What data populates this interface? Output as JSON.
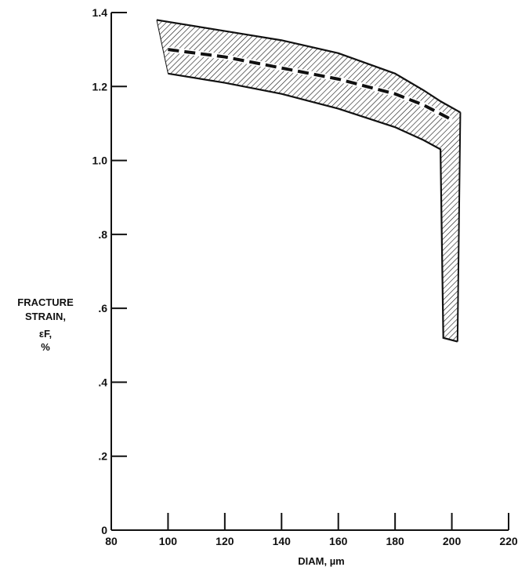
{
  "chart_data": {
    "type": "area",
    "title": "",
    "xlabel": "DIAM, µm",
    "ylabel_lines": [
      "FRACTURE",
      "STRAIN,",
      "εF,",
      "%"
    ],
    "xlim": [
      80,
      220
    ],
    "ylim": [
      0,
      1.4
    ],
    "x_ticks": [
      80,
      100,
      120,
      140,
      160,
      180,
      200,
      220
    ],
    "x_tick_labels": [
      "80",
      "100",
      "120",
      "140",
      "160",
      "180",
      "200",
      "220"
    ],
    "y_ticks": [
      0,
      0.2,
      0.4,
      0.6,
      0.8,
      1.0,
      1.2,
      1.4
    ],
    "y_tick_labels": [
      "0",
      ".2",
      ".4",
      ".6",
      ".8",
      "1.0",
      "1.2",
      "1.4"
    ],
    "grid": false,
    "series": [
      {
        "style": "hatched-band",
        "upper": {
          "x": [
            96,
            100,
            120,
            140,
            160,
            180,
            190,
            196,
            203
          ],
          "y": [
            1.38,
            1.375,
            1.35,
            1.325,
            1.29,
            1.235,
            1.19,
            1.16,
            1.13
          ]
        },
        "lower": {
          "x": [
            100,
            120,
            140,
            160,
            180,
            190,
            196,
            197,
            202
          ],
          "y": [
            1.235,
            1.21,
            1.18,
            1.14,
            1.09,
            1.055,
            1.03,
            0.52,
            0.51
          ]
        }
      },
      {
        "style": "dashed-line",
        "x": [
          100,
          120,
          140,
          160,
          180,
          190,
          200
        ],
        "y": [
          1.3,
          1.28,
          1.25,
          1.22,
          1.18,
          1.15,
          1.11
        ]
      }
    ]
  }
}
